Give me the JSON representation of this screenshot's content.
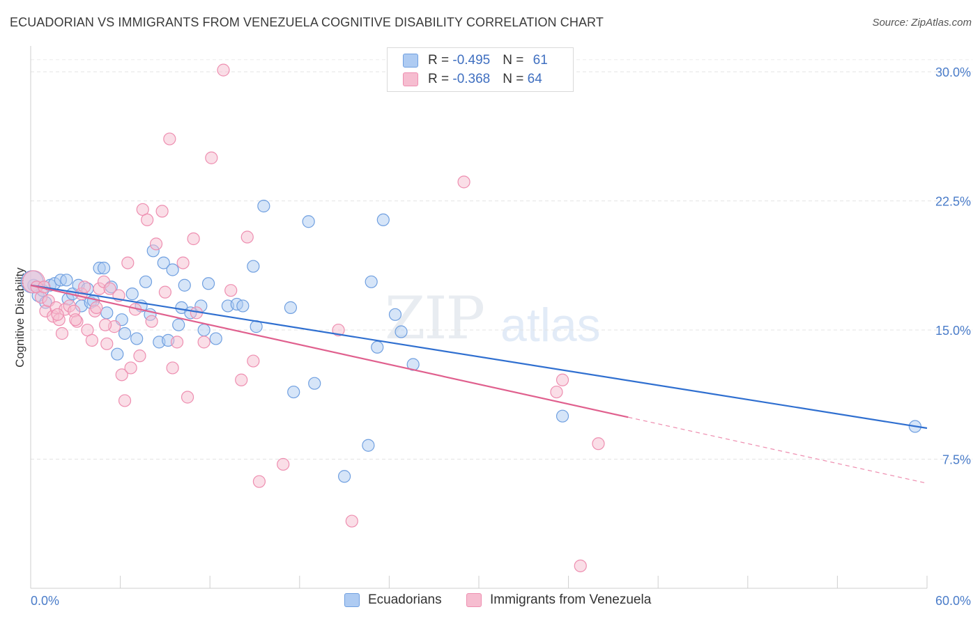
{
  "title": "ECUADORIAN VS IMMIGRANTS FROM VENEZUELA COGNITIVE DISABILITY CORRELATION CHART",
  "source": "Source: ZipAtlas.com",
  "watermark": {
    "part1": "ZIP",
    "part2": "atlas"
  },
  "legend": {
    "rows": [
      {
        "r_label": "R = ",
        "r_value": "-0.495",
        "n_label": "N = ",
        "n_value": "61"
      },
      {
        "r_label": "R = ",
        "r_value": "-0.368",
        "n_label": "N = ",
        "n_value": "64"
      }
    ]
  },
  "colors": {
    "blue_fill": "#aecbf2",
    "blue_stroke": "#6f9fe0",
    "blue_line": "#2f6fd0",
    "pink_fill": "#f6bdd0",
    "pink_stroke": "#ee8eb0",
    "pink_line": "#e0608e"
  },
  "chart_data": {
    "type": "scatter",
    "xlabel": "",
    "ylabel": "Cognitive Disability",
    "xlim": [
      0,
      60
    ],
    "ylim": [
      0,
      31.5
    ],
    "x_tick_labels": [
      "0.0%",
      "60.0%"
    ],
    "y_ticks": [
      7.5,
      15.0,
      22.5,
      30.0
    ],
    "y_tick_labels": [
      "7.5%",
      "15.0%",
      "22.5%",
      "30.0%"
    ],
    "grid": true,
    "legend_position": "bottom",
    "series": [
      {
        "name": "Ecuadorians",
        "color": "#6f9fe0",
        "trend": {
          "x": [
            0,
            60
          ],
          "y": [
            17.6,
            9.3
          ],
          "solid_until": 60
        },
        "points": [
          [
            0.2,
            17.6
          ],
          [
            0.5,
            17.0
          ],
          [
            0.8,
            17.3
          ],
          [
            1.0,
            16.6
          ],
          [
            1.3,
            17.6
          ],
          [
            1.6,
            17.7
          ],
          [
            2.0,
            17.9
          ],
          [
            2.4,
            17.9
          ],
          [
            2.5,
            16.8
          ],
          [
            2.8,
            17.1
          ],
          [
            3.2,
            17.6
          ],
          [
            3.4,
            16.4
          ],
          [
            3.8,
            17.4
          ],
          [
            4.0,
            16.6
          ],
          [
            4.2,
            16.7
          ],
          [
            4.6,
            18.6
          ],
          [
            4.9,
            18.6
          ],
          [
            5.1,
            16.0
          ],
          [
            5.4,
            17.5
          ],
          [
            5.8,
            13.6
          ],
          [
            6.1,
            15.6
          ],
          [
            6.3,
            14.8
          ],
          [
            6.8,
            17.1
          ],
          [
            7.1,
            14.5
          ],
          [
            7.4,
            16.4
          ],
          [
            7.7,
            17.8
          ],
          [
            8.0,
            15.9
          ],
          [
            8.2,
            19.6
          ],
          [
            8.6,
            14.3
          ],
          [
            8.9,
            18.9
          ],
          [
            9.2,
            14.4
          ],
          [
            9.5,
            18.5
          ],
          [
            9.9,
            15.3
          ],
          [
            10.1,
            16.3
          ],
          [
            10.3,
            17.6
          ],
          [
            10.7,
            16.0
          ],
          [
            11.4,
            16.4
          ],
          [
            11.6,
            15.0
          ],
          [
            11.9,
            17.7
          ],
          [
            12.4,
            14.5
          ],
          [
            13.2,
            16.4
          ],
          [
            13.8,
            16.5
          ],
          [
            14.2,
            16.4
          ],
          [
            14.9,
            18.7
          ],
          [
            15.1,
            15.2
          ],
          [
            15.6,
            22.2
          ],
          [
            17.4,
            16.3
          ],
          [
            17.6,
            11.4
          ],
          [
            18.6,
            21.3
          ],
          [
            19.0,
            11.9
          ],
          [
            21.0,
            6.5
          ],
          [
            22.6,
            8.3
          ],
          [
            22.8,
            17.8
          ],
          [
            23.2,
            14.0
          ],
          [
            23.6,
            21.4
          ],
          [
            24.4,
            15.9
          ],
          [
            24.8,
            14.9
          ],
          [
            25.6,
            13.0
          ],
          [
            35.6,
            10.0
          ],
          [
            59.2,
            9.4
          ],
          [
            0.1,
            17.8
          ]
        ]
      },
      {
        "name": "Immigrants from Venezuela",
        "color": "#ee8eb0",
        "trend": {
          "x": [
            0,
            60
          ],
          "y": [
            17.6,
            6.1
          ],
          "solid_until": 40
        },
        "points": [
          [
            0.2,
            17.8
          ],
          [
            0.4,
            17.5
          ],
          [
            0.7,
            16.9
          ],
          [
            1.0,
            16.1
          ],
          [
            1.2,
            16.7
          ],
          [
            1.5,
            15.8
          ],
          [
            1.7,
            16.3
          ],
          [
            1.9,
            15.6
          ],
          [
            2.1,
            14.8
          ],
          [
            2.3,
            16.2
          ],
          [
            2.6,
            16.4
          ],
          [
            2.9,
            16.1
          ],
          [
            3.1,
            15.5
          ],
          [
            3.4,
            17.1
          ],
          [
            3.6,
            17.5
          ],
          [
            3.8,
            15.0
          ],
          [
            4.1,
            14.4
          ],
          [
            4.3,
            16.1
          ],
          [
            4.6,
            17.4
          ],
          [
            4.9,
            17.8
          ],
          [
            5.1,
            14.2
          ],
          [
            5.3,
            17.4
          ],
          [
            5.6,
            15.2
          ],
          [
            5.9,
            17.0
          ],
          [
            6.1,
            12.4
          ],
          [
            6.3,
            10.9
          ],
          [
            6.5,
            18.9
          ],
          [
            6.7,
            12.8
          ],
          [
            7.0,
            16.2
          ],
          [
            7.3,
            13.5
          ],
          [
            7.5,
            22.0
          ],
          [
            7.8,
            21.4
          ],
          [
            8.1,
            15.5
          ],
          [
            8.4,
            20.0
          ],
          [
            8.8,
            21.9
          ],
          [
            9.0,
            17.2
          ],
          [
            9.3,
            26.1
          ],
          [
            9.5,
            12.8
          ],
          [
            9.8,
            14.3
          ],
          [
            10.2,
            18.9
          ],
          [
            10.5,
            11.1
          ],
          [
            10.9,
            20.3
          ],
          [
            11.1,
            16.0
          ],
          [
            11.6,
            14.3
          ],
          [
            12.1,
            25.0
          ],
          [
            12.9,
            30.1
          ],
          [
            13.4,
            17.3
          ],
          [
            14.1,
            12.1
          ],
          [
            14.5,
            20.4
          ],
          [
            14.9,
            13.2
          ],
          [
            15.3,
            6.2
          ],
          [
            16.9,
            7.2
          ],
          [
            20.6,
            15.0
          ],
          [
            21.5,
            3.9
          ],
          [
            29.0,
            23.6
          ],
          [
            35.2,
            11.4
          ],
          [
            35.6,
            12.1
          ],
          [
            36.8,
            1.3
          ],
          [
            38.0,
            8.4
          ],
          [
            0.9,
            17.5
          ],
          [
            1.8,
            15.9
          ],
          [
            3.0,
            15.6
          ],
          [
            4.4,
            16.3
          ],
          [
            5.0,
            15.3
          ]
        ]
      }
    ]
  },
  "bottom_legend": {
    "items": [
      "Ecuadorians",
      "Immigrants from Venezuela"
    ]
  }
}
